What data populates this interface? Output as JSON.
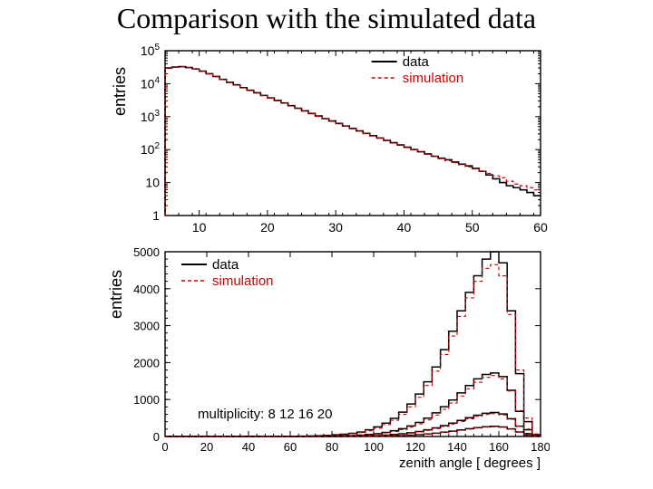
{
  "title": "Comparison with the simulated data",
  "colors": {
    "axis": "#000000",
    "data": "#000000",
    "sim": "#cc0000",
    "bg": "#ffffff"
  },
  "legend": {
    "data_label": "data",
    "sim_label": "simulation"
  },
  "top": {
    "ylabel": "entries",
    "scale": "log",
    "xlim": [
      5,
      60
    ],
    "ylim": [
      1,
      100000
    ],
    "xticks": [
      10,
      20,
      30,
      40,
      50,
      60
    ],
    "yticks": [
      1,
      10,
      100,
      1000,
      10000,
      100000
    ],
    "ytick_labels": [
      "1",
      "10",
      "10^2",
      "10^3",
      "10^4",
      "10^5"
    ],
    "bin_width": 1,
    "data_series": {
      "x": [
        5,
        6,
        7,
        8,
        9,
        10,
        11,
        12,
        13,
        14,
        15,
        16,
        17,
        18,
        19,
        20,
        21,
        22,
        23,
        24,
        25,
        26,
        27,
        28,
        29,
        30,
        31,
        32,
        33,
        34,
        35,
        36,
        37,
        38,
        39,
        40,
        41,
        42,
        43,
        44,
        45,
        46,
        47,
        48,
        49,
        50,
        51,
        52,
        53,
        54,
        55,
        56,
        57,
        58,
        59
      ],
      "y": [
        30000,
        32000,
        33000,
        31000,
        28000,
        24000,
        20000,
        16500,
        13500,
        11000,
        9200,
        7600,
        6300,
        5300,
        4400,
        3700,
        3100,
        2600,
        2150,
        1800,
        1500,
        1250,
        1050,
        870,
        740,
        620,
        520,
        440,
        370,
        310,
        265,
        225,
        190,
        162,
        138,
        118,
        100,
        86,
        74,
        63,
        55,
        49,
        42,
        36,
        32,
        27,
        22,
        17,
        13,
        10,
        8,
        7,
        6,
        5,
        4
      ]
    },
    "sim_series": {
      "x": [
        5,
        6,
        7,
        8,
        9,
        10,
        11,
        12,
        13,
        14,
        15,
        16,
        17,
        18,
        19,
        20,
        21,
        22,
        23,
        24,
        25,
        26,
        27,
        28,
        29,
        30,
        31,
        32,
        33,
        34,
        35,
        36,
        37,
        38,
        39,
        40,
        41,
        42,
        43,
        44,
        45,
        46,
        47,
        48,
        49,
        50,
        51,
        52,
        53,
        54,
        55,
        56,
        57,
        58,
        59
      ],
      "y": [
        29000,
        31500,
        32500,
        30500,
        27500,
        23500,
        19800,
        16200,
        13300,
        10800,
        9050,
        7450,
        6180,
        5180,
        4320,
        3620,
        3040,
        2560,
        2100,
        1760,
        1470,
        1225,
        1020,
        850,
        720,
        605,
        510,
        430,
        363,
        305,
        260,
        220,
        186,
        158,
        135,
        115,
        98,
        84,
        72,
        62,
        53,
        46,
        40,
        35,
        30,
        26,
        22,
        19,
        16,
        14,
        11,
        9,
        8,
        7,
        6
      ]
    }
  },
  "bottom": {
    "ylabel": "entries",
    "xlabel": "zenith angle [ degrees ]",
    "scale": "linear",
    "xlim": [
      0,
      180
    ],
    "ylim": [
      0,
      5000
    ],
    "xticks": [
      0,
      20,
      40,
      60,
      80,
      100,
      120,
      140,
      160,
      180
    ],
    "yticks": [
      0,
      1000,
      2000,
      3000,
      4000,
      5000
    ],
    "multiplicity_label": "multiplicity: 8 12 16 20",
    "bin_width": 4,
    "series": [
      {
        "name": "m8",
        "data_y": [
          0,
          0,
          0,
          0,
          0,
          0,
          0,
          0,
          0,
          0,
          0,
          0,
          0,
          0,
          0,
          0,
          10,
          15,
          20,
          30,
          45,
          60,
          85,
          120,
          180,
          260,
          360,
          490,
          660,
          880,
          1150,
          1480,
          1880,
          2350,
          2850,
          3400,
          3900,
          4350,
          4800,
          5000,
          4700,
          3400,
          1700,
          400,
          50
        ],
        "sim_y": [
          0,
          0,
          0,
          0,
          0,
          0,
          0,
          0,
          0,
          0,
          0,
          0,
          0,
          0,
          0,
          0,
          8,
          12,
          18,
          26,
          38,
          52,
          74,
          105,
          155,
          225,
          320,
          440,
          600,
          800,
          1060,
          1380,
          1770,
          2220,
          2720,
          3250,
          3750,
          4200,
          4550,
          4650,
          4350,
          3300,
          1800,
          500,
          70
        ]
      },
      {
        "name": "m12",
        "data_y": [
          0,
          0,
          0,
          0,
          0,
          0,
          0,
          0,
          0,
          0,
          0,
          0,
          0,
          0,
          0,
          0,
          0,
          0,
          5,
          8,
          12,
          18,
          26,
          38,
          55,
          78,
          110,
          155,
          210,
          285,
          380,
          495,
          640,
          805,
          985,
          1180,
          1380,
          1560,
          1680,
          1720,
          1620,
          1250,
          680,
          180,
          20
        ],
        "sim_y": [
          0,
          0,
          0,
          0,
          0,
          0,
          0,
          0,
          0,
          0,
          0,
          0,
          0,
          0,
          0,
          0,
          0,
          0,
          4,
          7,
          10,
          15,
          22,
          32,
          47,
          67,
          95,
          135,
          185,
          252,
          340,
          448,
          580,
          735,
          905,
          1095,
          1290,
          1470,
          1600,
          1650,
          1560,
          1230,
          700,
          200,
          25
        ]
      },
      {
        "name": "m16",
        "data_y": [
          0,
          0,
          0,
          0,
          0,
          0,
          0,
          0,
          0,
          0,
          0,
          0,
          0,
          0,
          0,
          0,
          0,
          0,
          0,
          0,
          3,
          5,
          8,
          12,
          18,
          26,
          38,
          54,
          75,
          102,
          136,
          180,
          232,
          293,
          362,
          435,
          508,
          575,
          628,
          650,
          610,
          480,
          280,
          80,
          8
        ],
        "sim_y": [
          0,
          0,
          0,
          0,
          0,
          0,
          0,
          0,
          0,
          0,
          0,
          0,
          0,
          0,
          0,
          0,
          0,
          0,
          0,
          0,
          3,
          4,
          7,
          11,
          16,
          23,
          34,
          48,
          67,
          92,
          124,
          164,
          213,
          270,
          335,
          405,
          477,
          543,
          595,
          618,
          582,
          465,
          278,
          85,
          10
        ]
      },
      {
        "name": "m20",
        "data_y": [
          0,
          0,
          0,
          0,
          0,
          0,
          0,
          0,
          0,
          0,
          0,
          0,
          0,
          0,
          0,
          0,
          0,
          0,
          0,
          0,
          0,
          0,
          2,
          3,
          5,
          8,
          12,
          18,
          26,
          36,
          50,
          68,
          90,
          116,
          145,
          177,
          210,
          240,
          264,
          275,
          258,
          205,
          122,
          38,
          4
        ],
        "sim_y": [
          0,
          0,
          0,
          0,
          0,
          0,
          0,
          0,
          0,
          0,
          0,
          0,
          0,
          0,
          0,
          0,
          0,
          0,
          0,
          0,
          0,
          0,
          2,
          3,
          5,
          7,
          11,
          16,
          23,
          33,
          46,
          62,
          83,
          108,
          136,
          166,
          198,
          228,
          252,
          263,
          248,
          200,
          122,
          40,
          5
        ]
      }
    ]
  }
}
